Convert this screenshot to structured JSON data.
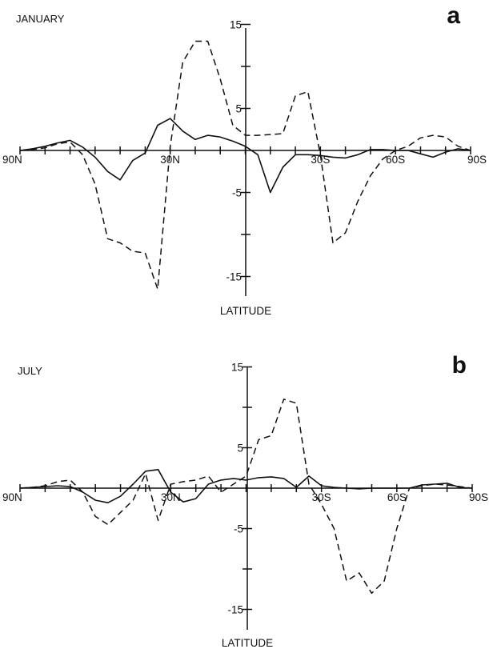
{
  "chart_data": [
    {
      "type": "line",
      "panel_label": "a",
      "title": "JANUARY",
      "xlabel": "LATITUDE",
      "ylabel": "",
      "x_tick_labels": [
        "90N",
        "30N",
        "30S",
        "60S",
        "90S"
      ],
      "x_tick_label_values": [
        90,
        30,
        -30,
        -60,
        -90
      ],
      "y_tick_labels": [
        "15",
        "5",
        "-5",
        "-15"
      ],
      "y_tick_label_values": [
        15,
        5,
        -5,
        -15
      ],
      "xlim": [
        90,
        -90
      ],
      "ylim": [
        -17,
        17
      ],
      "x": [
        90,
        85,
        80,
        75,
        70,
        65,
        60,
        55,
        50,
        45,
        40,
        35,
        30,
        25,
        20,
        15,
        10,
        5,
        0,
        -5,
        -10,
        -15,
        -20,
        -25,
        -30,
        -35,
        -40,
        -45,
        -50,
        -55,
        -60,
        -65,
        -70,
        -75,
        -80,
        -85,
        -90
      ],
      "series": [
        {
          "style": "solid",
          "values": [
            0,
            0.2,
            0.5,
            0.9,
            1.2,
            0.4,
            -0.8,
            -2.5,
            -3.5,
            -1.2,
            -0.3,
            3.0,
            3.8,
            2.3,
            1.3,
            1.8,
            1.6,
            1.1,
            0.5,
            -0.5,
            -5.0,
            -2.0,
            -0.5,
            -0.5,
            -0.6,
            -0.8,
            -0.9,
            -0.5,
            0.1,
            0.1,
            0,
            0,
            -0.4,
            -0.8,
            -0.2,
            0.2,
            0
          ]
        },
        {
          "style": "dashed",
          "values": [
            0,
            0.1,
            0.3,
            0.8,
            1.0,
            -0.5,
            -4.0,
            -10.5,
            -11.0,
            -12.0,
            -12.2,
            -16.5,
            0.5,
            10.5,
            13.0,
            13.0,
            8.5,
            3.0,
            1.8,
            1.8,
            1.9,
            2.0,
            6.5,
            7.0,
            -0.5,
            -11.0,
            -9.8,
            -6.0,
            -3.0,
            -1.0,
            0,
            0.5,
            1.5,
            1.8,
            1.6,
            0.5,
            0
          ]
        }
      ]
    },
    {
      "type": "line",
      "panel_label": "b",
      "title": "JULY",
      "xlabel": "LATITUDE",
      "ylabel": "",
      "x_tick_labels": [
        "90N",
        "30N",
        "30S",
        "60S",
        "90S"
      ],
      "x_tick_label_values": [
        90,
        30,
        -30,
        -60,
        -90
      ],
      "y_tick_labels": [
        "15",
        "5",
        "-5",
        "-15"
      ],
      "y_tick_label_values": [
        15,
        5,
        -5,
        -15
      ],
      "xlim": [
        90,
        -90
      ],
      "ylim": [
        -17,
        17
      ],
      "x": [
        90,
        85,
        80,
        75,
        70,
        65,
        60,
        55,
        50,
        45,
        40,
        35,
        30,
        25,
        20,
        15,
        10,
        5,
        0,
        -5,
        -10,
        -15,
        -20,
        -25,
        -30,
        -35,
        -40,
        -45,
        -50,
        -55,
        -60,
        -65,
        -70,
        -75,
        -80,
        -85,
        -90
      ],
      "series": [
        {
          "style": "solid",
          "values": [
            0,
            0.1,
            0.2,
            0.3,
            0.2,
            -0.5,
            -1.5,
            -1.8,
            -1.0,
            0.5,
            2.1,
            2.3,
            -0.5,
            -1.7,
            -1.3,
            0.5,
            1.0,
            1.2,
            1.0,
            1.3,
            1.4,
            1.2,
            0.1,
            1.5,
            0.3,
            0.1,
            0,
            -0.1,
            0,
            0,
            0,
            0,
            0.4,
            0.5,
            0.6,
            0.1,
            0
          ]
        },
        {
          "style": "dashed",
          "values": [
            0,
            0.1,
            0.3,
            0.8,
            1.0,
            -0.5,
            -3.5,
            -4.5,
            -3.0,
            -1.5,
            1.8,
            -4.0,
            0.5,
            0.8,
            1.0,
            1.5,
            -0.5,
            0.5,
            1.5,
            6.0,
            6.5,
            11.0,
            10.5,
            0.5,
            -2.0,
            -5.0,
            -11.5,
            -10.5,
            -13.0,
            -11.5,
            -5.0,
            0,
            0.3,
            0.5,
            0.4,
            0.2,
            0
          ]
        }
      ]
    }
  ]
}
